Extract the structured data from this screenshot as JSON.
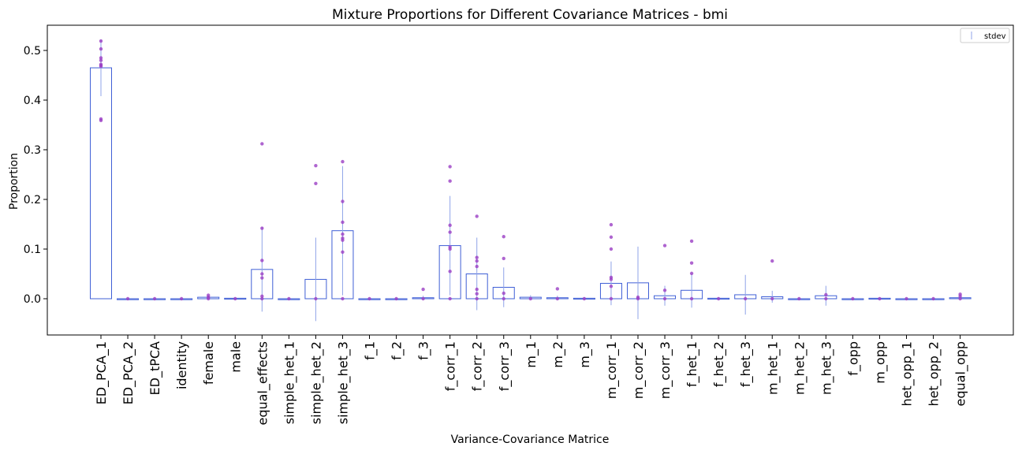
{
  "chart_data": {
    "type": "bar",
    "title": "Mixture Proportions for Different Covariance Matrices - bmi",
    "xlabel": "Variance-Covariance Matrice",
    "ylabel": "Proportion",
    "ylim": [
      -0.075,
      0.55
    ],
    "yticks": [
      0.0,
      0.1,
      0.2,
      0.3,
      0.4,
      0.5
    ],
    "ytick_labels": [
      "0.0",
      "0.1",
      "0.2",
      "0.3",
      "0.4",
      "0.5"
    ],
    "grid": false,
    "legend": {
      "position": "top-right",
      "entries": [
        "stdev"
      ]
    },
    "colors": {
      "bar_edge": "#3f5fd6",
      "errorbar": "#8fa3e8",
      "points": "#9b3fc4",
      "axis": "#000000"
    },
    "categories": [
      "ED_PCA_1",
      "ED_PCA_2",
      "ED_tPCA",
      "identity",
      "female",
      "male",
      "equal_effects",
      "simple_het_1",
      "simple_het_2",
      "simple_het_3",
      "f_1",
      "f_2",
      "f_3",
      "f_corr_1",
      "f_corr_2",
      "f_corr_3",
      "m_1",
      "m_2",
      "m_3",
      "m_corr_1",
      "m_corr_2",
      "m_corr_3",
      "f_het_1",
      "f_het_2",
      "f_het_3",
      "m_het_1",
      "m_het_2",
      "m_het_3",
      "f_opp",
      "m_opp",
      "het_opp_1",
      "het_opp_2",
      "equal_opp"
    ],
    "values": [
      0.465,
      0.0,
      0.0,
      0.0,
      0.003,
      0.001,
      0.059,
      0.0,
      0.039,
      0.137,
      0.0,
      0.0,
      0.002,
      0.107,
      0.05,
      0.023,
      0.003,
      0.002,
      0.001,
      0.031,
      0.032,
      0.006,
      0.017,
      0.001,
      0.008,
      0.004,
      0.0,
      0.006,
      0.0,
      0.001,
      0.0,
      0.0,
      0.002
    ],
    "stdev": [
      0.057,
      0.0,
      0.0,
      0.0,
      0.003,
      0.001,
      0.085,
      0.0,
      0.084,
      0.13,
      0.0,
      0.0,
      0.004,
      0.1,
      0.073,
      0.04,
      0.004,
      0.004,
      0.002,
      0.044,
      0.073,
      0.02,
      0.035,
      0.002,
      0.04,
      0.012,
      0.0,
      0.02,
      0.0,
      0.001,
      0.0,
      0.0,
      0.003
    ],
    "points": [
      [
        0.519,
        0.503,
        0.485,
        0.48,
        0.472,
        0.468,
        0.47,
        0.362,
        0.359
      ],
      [
        0.0
      ],
      [
        0.0
      ],
      [
        0.0
      ],
      [
        0.007,
        0.003,
        0.0
      ],
      [
        0.0
      ],
      [
        0.312,
        0.142,
        0.077,
        0.05,
        0.042,
        0.005,
        0.0
      ],
      [
        0.0
      ],
      [
        0.268,
        0.232,
        0.0
      ],
      [
        0.276,
        0.196,
        0.154,
        0.13,
        0.122,
        0.118,
        0.094,
        0.0
      ],
      [
        0.0
      ],
      [
        0.0
      ],
      [
        0.019,
        0.0
      ],
      [
        0.266,
        0.237,
        0.148,
        0.134,
        0.104,
        0.1,
        0.055,
        0.0
      ],
      [
        0.166,
        0.083,
        0.076,
        0.065,
        0.019,
        0.01,
        0.0
      ],
      [
        0.125,
        0.081,
        0.011,
        0.0
      ],
      [
        0.0
      ],
      [
        0.02,
        0.0
      ],
      [
        0.0
      ],
      [
        0.149,
        0.124,
        0.1,
        0.043,
        0.039,
        0.025,
        0.0
      ],
      [
        0.003,
        0.0
      ],
      [
        0.107,
        0.017,
        0.0
      ],
      [
        0.116,
        0.072,
        0.051,
        0.0
      ],
      [
        0.0
      ],
      [
        0.0
      ],
      [
        0.076,
        0.0
      ],
      [
        0.0
      ],
      [
        0.008,
        0.0
      ],
      [
        0.0
      ],
      [
        0.0
      ],
      [
        0.0
      ],
      [
        0.0
      ],
      [
        0.009,
        0.005,
        0.0
      ]
    ]
  }
}
